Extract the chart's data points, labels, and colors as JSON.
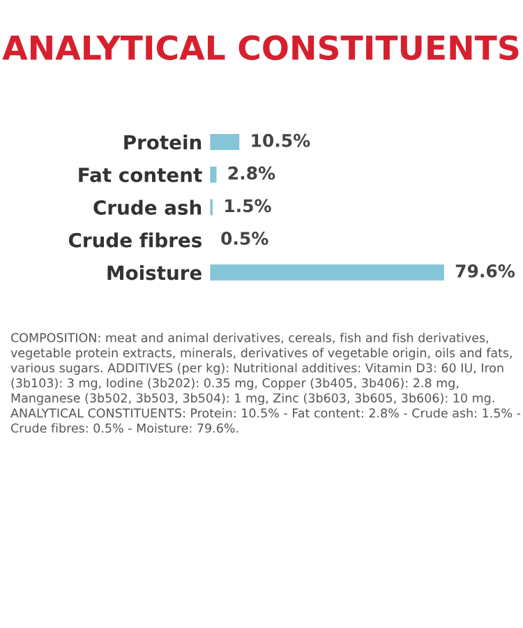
{
  "chart_data": {
    "type": "bar",
    "orientation": "horizontal",
    "title": "ANALYTICAL CONSTITUENTS",
    "categories": [
      "Protein",
      "Fat content",
      "Crude ash",
      "Crude fibres",
      "Moisture"
    ],
    "values": [
      10.5,
      2.8,
      1.5,
      0.5,
      79.6
    ],
    "value_labels": [
      "10.5%",
      "2.8%",
      "1.5%",
      "0.5%",
      "79.6%"
    ],
    "color": "#86c5d8",
    "grid": false,
    "legend": false,
    "annotations": [
      "COMPOSITION: meat and animal derivatives, cereals, fish and fish derivatives, vegetable protein extracts, minerals, derivatives of vegetable origin, oils and fats, various sugars. ADDITIVES (per kg): Nutritional additives: Vitamin D3: 60 IU, Iron (3b103): 3 mg, Iodine (3b202): 0.35 mg, Copper (3b405, 3b406): 2.8 mg, Manganese (3b502, 3b503, 3b504): 1 mg, Zinc (3b603, 3b605, 3b606): 10 mg. ANALYTICAL CONSTITUENTS: Protein: 10.5% - Fat content: 2.8% - Crude ash: 1.5% - Crude fibres: 0.5% - Moisture: 79.6%."
    ]
  }
}
